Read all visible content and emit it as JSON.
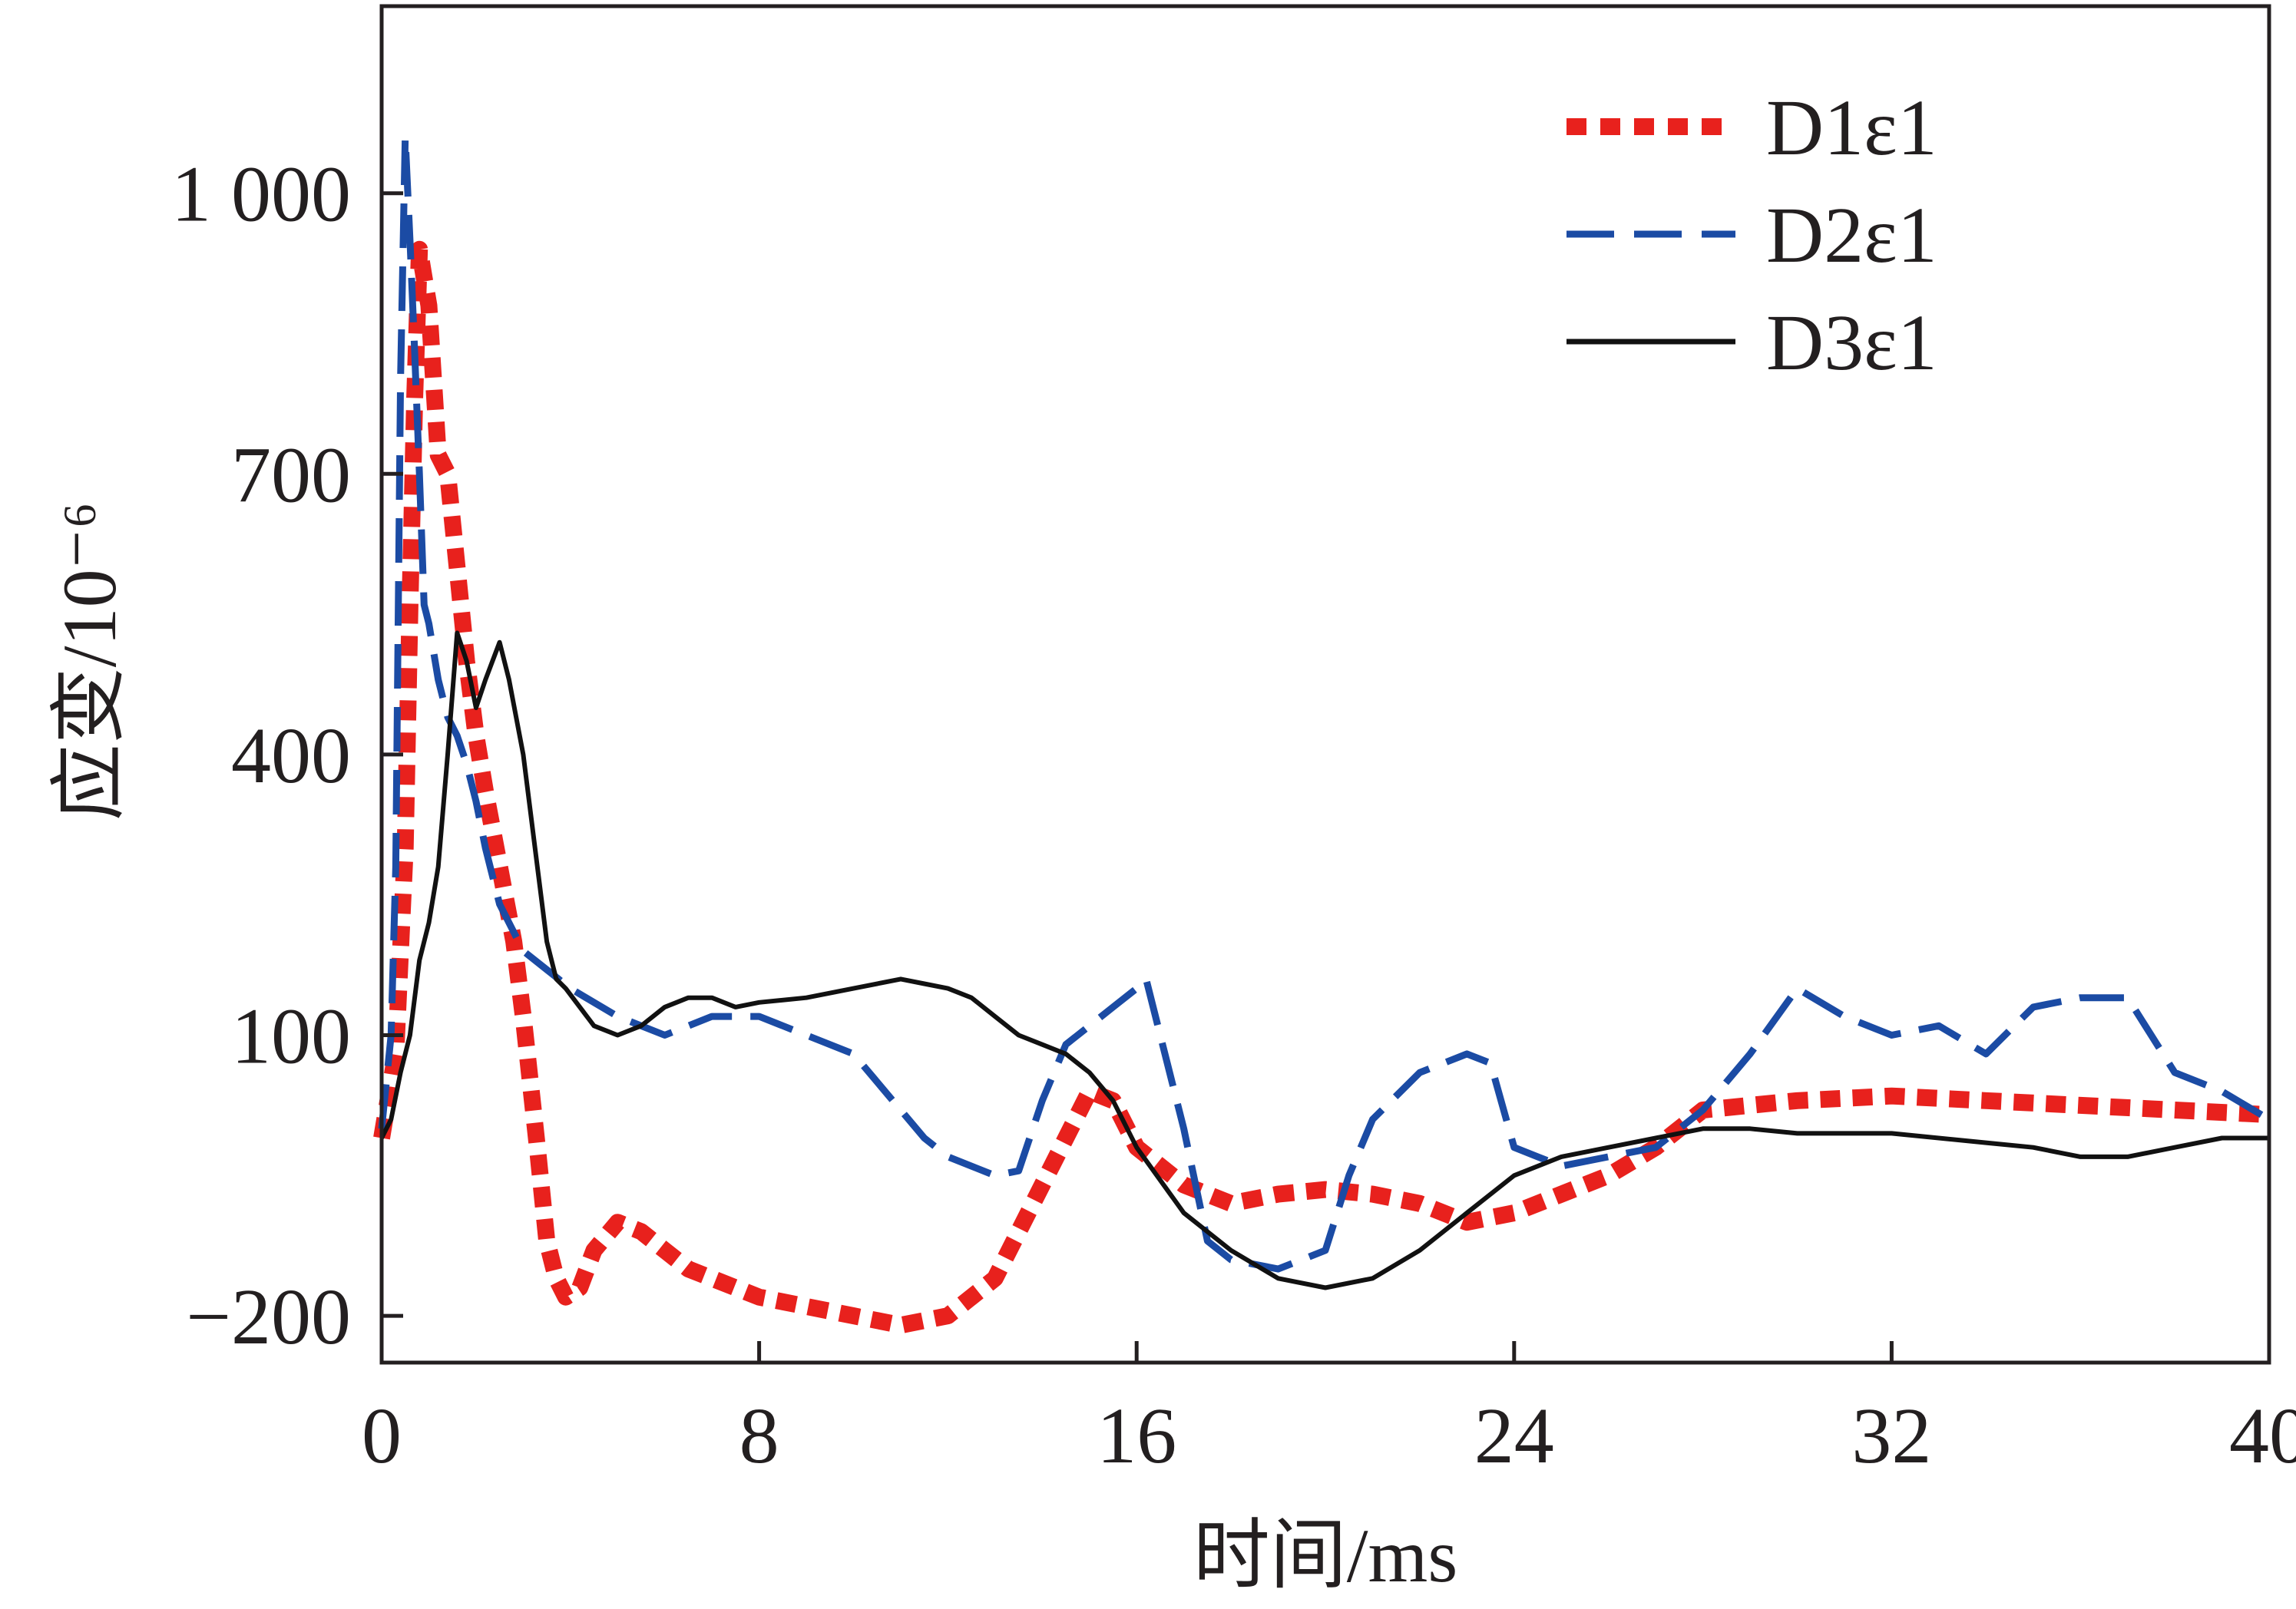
{
  "chart_data": {
    "type": "line",
    "xlabel": "时间/ms",
    "ylabel": "应变/10⁻⁶",
    "xlim": [
      0,
      40
    ],
    "ylim": [
      -250,
      1200
    ],
    "x_ticks": [
      "0",
      "8",
      "16",
      "24",
      "32",
      "40"
    ],
    "y_ticks": [
      "−200",
      "100",
      "400",
      "700",
      "1 000"
    ],
    "x_tick_values": [
      0,
      8,
      16,
      24,
      32,
      40
    ],
    "y_tick_values": [
      -200,
      100,
      400,
      700,
      1000
    ],
    "grid": false,
    "legend_position": "top-right",
    "series": [
      {
        "name": "D1ε1",
        "color": "#e8211d",
        "style": "dotted",
        "x": [
          0,
          0.3,
          0.5,
          0.6,
          0.7,
          0.8,
          0.9,
          1.0,
          1.1,
          1.2,
          1.4,
          1.6,
          1.8,
          2.0,
          2.2,
          2.5,
          2.8,
          3.0,
          3.3,
          3.5,
          3.7,
          3.9,
          4.2,
          4.5,
          5.0,
          5.5,
          6.0,
          6.5,
          7.0,
          8.0,
          9.0,
          10.0,
          11.0,
          11.5,
          12.0,
          13.0,
          14.0,
          15.0,
          15.5,
          16.0,
          17.0,
          18.0,
          19.0,
          20.0,
          21.0,
          22.0,
          23.0,
          24.0,
          25.0,
          26.0,
          27.0,
          28.0,
          30.0,
          32.0,
          34.0,
          36.0,
          38.0,
          40.0
        ],
        "y": [
          -10,
          80,
          300,
          560,
          780,
          940,
          910,
          880,
          800,
          720,
          700,
          600,
          500,
          420,
          360,
          280,
          200,
          120,
          -20,
          -120,
          -160,
          -180,
          -170,
          -130,
          -100,
          -110,
          -130,
          -150,
          -160,
          -180,
          -190,
          -200,
          -210,
          -205,
          -200,
          -160,
          -60,
          40,
          30,
          -20,
          -60,
          -80,
          -70,
          -65,
          -70,
          -80,
          -100,
          -90,
          -70,
          -50,
          -20,
          20,
          30,
          35,
          30,
          25,
          20,
          15
        ]
      },
      {
        "name": "D2ε1",
        "color": "#1b4ba4",
        "style": "dashed",
        "x": [
          0,
          0.2,
          0.3,
          0.4,
          0.5,
          0.6,
          0.7,
          0.8,
          0.9,
          1.0,
          1.2,
          1.4,
          1.6,
          1.8,
          2.0,
          2.2,
          2.5,
          2.8,
          3.0,
          3.5,
          4.0,
          5.0,
          5.5,
          6.0,
          6.5,
          7.0,
          8.0,
          9.0,
          10.0,
          11.0,
          11.5,
          12.0,
          13.0,
          13.5,
          14.0,
          14.5,
          15.0,
          15.5,
          16.0,
          16.2,
          16.5,
          17.0,
          17.5,
          18.0,
          19.0,
          20.0,
          20.5,
          21.0,
          22.0,
          23.0,
          23.5,
          24.0,
          24.5,
          25.0,
          26.0,
          27.0,
          28.0,
          29.0,
          30.0,
          31.0,
          32.0,
          33.0,
          34.0,
          35.0,
          36.0,
          37.0,
          38.0,
          39.0,
          40.0
        ],
        "y": [
          0,
          100,
          280,
          800,
          1060,
          950,
          830,
          700,
          560,
          540,
          480,
          440,
          420,
          390,
          350,
          300,
          240,
          210,
          190,
          170,
          150,
          120,
          110,
          100,
          110,
          120,
          120,
          100,
          80,
          20,
          -10,
          -30,
          -50,
          -45,
          30,
          90,
          110,
          130,
          150,
          160,
          100,
          0,
          -120,
          -140,
          -150,
          -130,
          -50,
          10,
          60,
          80,
          70,
          -20,
          -30,
          -40,
          -30,
          -20,
          20,
          80,
          150,
          120,
          100,
          110,
          80,
          130,
          140,
          140,
          60,
          40,
          10
        ]
      },
      {
        "name": "D3ε1",
        "color": "#111111",
        "style": "solid",
        "x": [
          0,
          0.2,
          0.4,
          0.6,
          0.8,
          1.0,
          1.2,
          1.4,
          1.6,
          1.8,
          2.0,
          2.2,
          2.5,
          2.7,
          3.0,
          3.3,
          3.5,
          3.7,
          3.9,
          4.2,
          4.5,
          5.0,
          5.5,
          6.0,
          6.5,
          7.0,
          7.5,
          8.0,
          9.0,
          10.0,
          11.0,
          11.5,
          12.0,
          12.5,
          13.0,
          13.5,
          14.0,
          14.5,
          15.0,
          15.5,
          16.0,
          17.0,
          18.0,
          19.0,
          20.0,
          21.0,
          22.0,
          23.0,
          24.0,
          25.0,
          26.0,
          27.0,
          28.0,
          29.0,
          30.0,
          32.0,
          34.0,
          35.0,
          36.0,
          37.0,
          38.0,
          39.0,
          40.0
        ],
        "y": [
          -10,
          10,
          60,
          100,
          180,
          220,
          280,
          400,
          530,
          500,
          450,
          480,
          520,
          480,
          400,
          280,
          200,
          160,
          150,
          130,
          110,
          100,
          110,
          130,
          140,
          140,
          130,
          135,
          140,
          150,
          160,
          155,
          150,
          140,
          120,
          100,
          90,
          80,
          60,
          30,
          -20,
          -90,
          -130,
          -160,
          -170,
          -160,
          -130,
          -90,
          -50,
          -30,
          -20,
          -10,
          0,
          0,
          -5,
          -5,
          -15,
          -20,
          -30,
          -30,
          -20,
          -10,
          -10
        ]
      }
    ]
  }
}
